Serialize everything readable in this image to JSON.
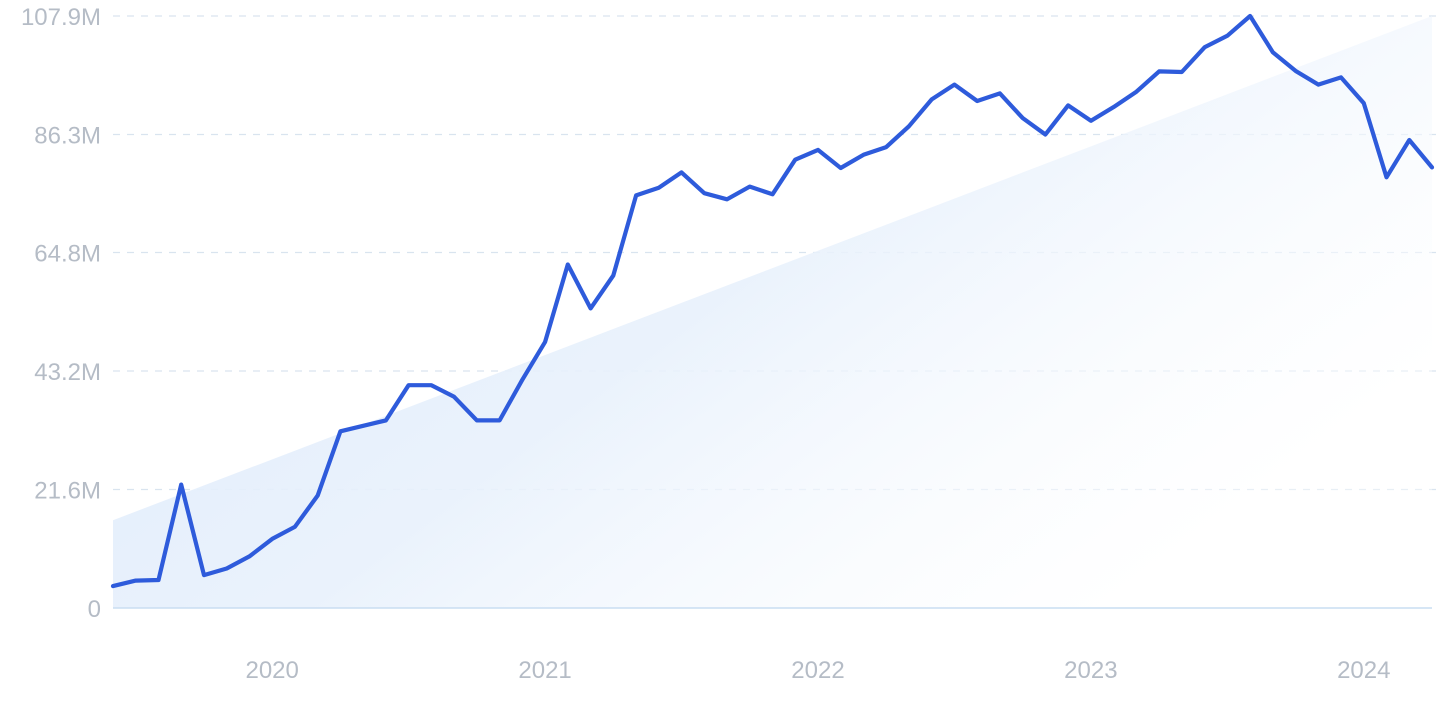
{
  "chart_data": {
    "type": "area",
    "title": "",
    "xlabel": "",
    "ylabel": "",
    "x_tick_labels": [
      "2020",
      "2021",
      "2022",
      "2023",
      "2024"
    ],
    "x_tick_values": [
      "2020-01",
      "2021-01",
      "2022-01",
      "2023-01",
      "2024-01"
    ],
    "y_tick_labels": [
      "0",
      "21.6M",
      "43.2M",
      "64.8M",
      "86.3M",
      "107.9M"
    ],
    "y_tick_values": [
      0,
      21600000,
      43200000,
      64800000,
      86300000,
      107900000
    ],
    "ylim": [
      0,
      107900000
    ],
    "xlim": [
      "2019-06",
      "2024-04"
    ],
    "grid": "horizontal dashed",
    "colors": {
      "line": "#2E5BDB",
      "trend_fill": "#DCE9FA",
      "grid": "#D9E4EF",
      "baseline": "#C9DDF2",
      "tick_text": "#B5BCC6"
    },
    "series": [
      {
        "x": [
          "2019-06",
          "2019-07",
          "2019-08",
          "2019-09",
          "2019-10",
          "2019-11",
          "2019-12",
          "2020-01",
          "2020-02",
          "2020-03",
          "2020-04",
          "2020-05",
          "2020-06",
          "2020-07",
          "2020-08",
          "2020-09",
          "2020-10",
          "2020-11",
          "2020-12",
          "2021-01",
          "2021-02",
          "2021-03",
          "2021-04",
          "2021-05",
          "2021-06",
          "2021-07",
          "2021-08",
          "2021-09",
          "2021-10",
          "2021-11",
          "2021-12",
          "2022-01",
          "2022-02",
          "2022-03",
          "2022-04",
          "2022-05",
          "2022-06",
          "2022-07",
          "2022-08",
          "2022-09",
          "2022-10",
          "2022-11",
          "2022-12",
          "2023-01",
          "2023-02",
          "2023-03",
          "2023-04",
          "2023-05",
          "2023-06",
          "2023-07",
          "2023-08",
          "2023-09",
          "2023-10",
          "2023-11",
          "2023-12",
          "2024-01",
          "2024-02",
          "2024-03",
          "2024-04"
        ],
        "values": [
          4000000,
          5000000,
          5100000,
          22500000,
          6000000,
          7200000,
          9400000,
          12600000,
          14800000,
          20500000,
          32200000,
          33200000,
          34200000,
          40600000,
          40600000,
          38500000,
          34200000,
          34200000,
          41600000,
          48500000,
          62600000,
          54600000,
          60600000,
          75200000,
          76600000,
          79400000,
          75600000,
          74500000,
          76800000,
          75400000,
          81700000,
          83500000,
          80200000,
          82600000,
          84000000,
          87800000,
          92700000,
          95400000,
          92400000,
          93800000,
          89300000,
          86300000,
          91600000,
          88800000,
          91300000,
          94100000,
          97800000,
          97700000,
          102200000,
          104300000,
          107900000,
          101300000,
          97900000,
          95400000,
          96700000,
          92000000,
          78500000,
          85300000,
          80300000
        ]
      }
    ],
    "trend_area": {
      "x": [
        "2019-06",
        "2024-04"
      ],
      "values": [
        16000000,
        107900000
      ]
    }
  }
}
